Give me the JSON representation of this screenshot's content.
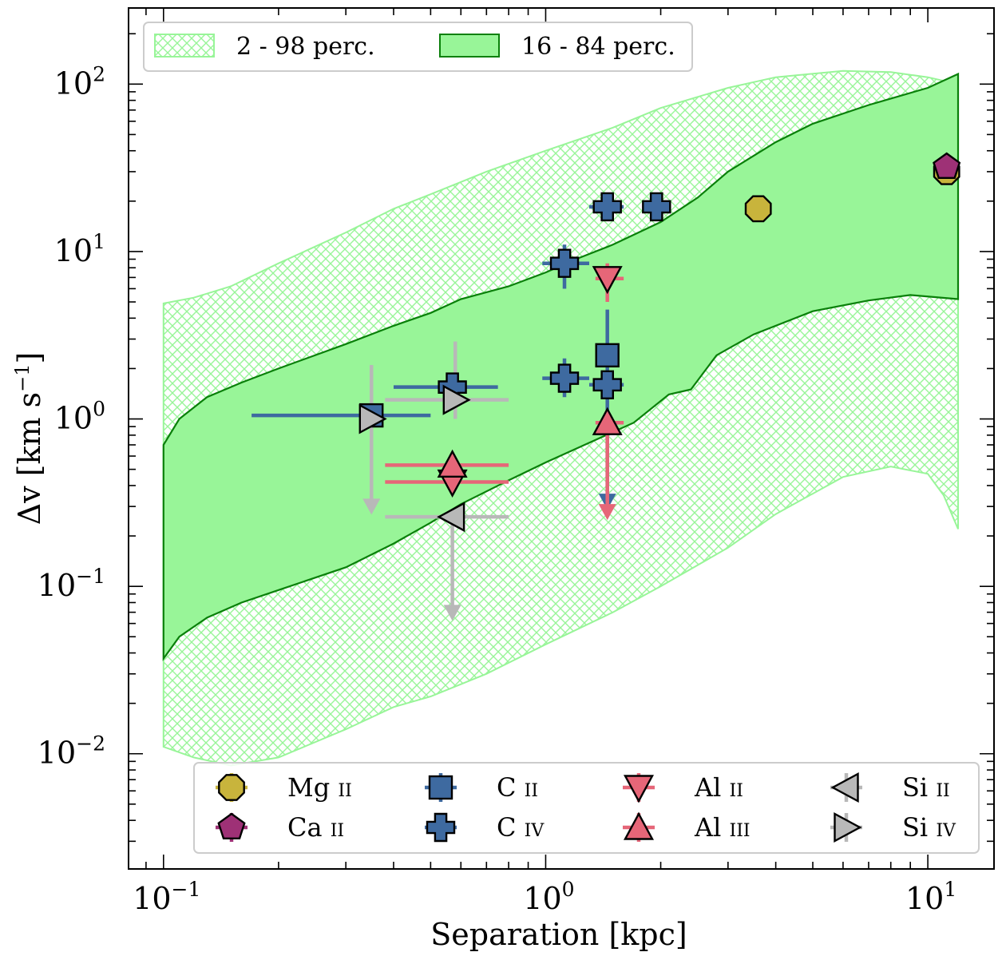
{
  "chart_data": {
    "type": "scatter",
    "xlabel": "Separation [kpc]",
    "ylabel_main": "Δv [km s",
    "ylabel_sup": "−1",
    "ylabel_end": "]",
    "x_scale": "log",
    "y_scale": "log",
    "xlim": [
      0.081,
      14.9
    ],
    "ylim": [
      0.00205,
      285
    ],
    "x_ticks": [
      {
        "value": 0.1,
        "base": "10",
        "exp": "−1"
      },
      {
        "value": 1,
        "base": "10",
        "exp": "0"
      },
      {
        "value": 10,
        "base": "10",
        "exp": "1"
      }
    ],
    "y_ticks": [
      {
        "value": 0.01,
        "base": "10",
        "exp": "−2"
      },
      {
        "value": 0.1,
        "base": "10",
        "exp": "−1"
      },
      {
        "value": 1,
        "base": "10",
        "exp": "0"
      },
      {
        "value": 10,
        "base": "10",
        "exp": "1"
      },
      {
        "value": 100,
        "base": "10",
        "exp": "2"
      }
    ],
    "band_legend": [
      {
        "label": "2 - 98 perc.",
        "style": "hatched"
      },
      {
        "label": "16 - 84 perc.",
        "style": "filled"
      }
    ],
    "bands": {
      "p2_98_upper": [
        [
          0.1,
          4.9
        ],
        [
          0.12,
          5.3
        ],
        [
          0.15,
          6.2
        ],
        [
          0.2,
          8.5
        ],
        [
          0.3,
          13
        ],
        [
          0.4,
          18
        ],
        [
          0.5,
          22
        ],
        [
          0.7,
          30
        ],
        [
          1.0,
          40
        ],
        [
          1.5,
          55
        ],
        [
          2.0,
          72
        ],
        [
          3.0,
          95
        ],
        [
          4.0,
          110
        ],
        [
          6.0,
          120
        ],
        [
          8.0,
          118
        ],
        [
          10,
          110
        ],
        [
          12,
          100
        ]
      ],
      "p2_98_lower": [
        [
          0.1,
          0.011
        ],
        [
          0.12,
          0.0095
        ],
        [
          0.15,
          0.0085
        ],
        [
          0.2,
          0.0095
        ],
        [
          0.3,
          0.014
        ],
        [
          0.4,
          0.019
        ],
        [
          0.5,
          0.022
        ],
        [
          0.7,
          0.03
        ],
        [
          1.0,
          0.045
        ],
        [
          1.5,
          0.07
        ],
        [
          2.0,
          0.1
        ],
        [
          3.0,
          0.17
        ],
        [
          4.0,
          0.27
        ],
        [
          6.0,
          0.45
        ],
        [
          8.0,
          0.52
        ],
        [
          10,
          0.47
        ],
        [
          11,
          0.35
        ],
        [
          12,
          0.22
        ]
      ],
      "p16_84_upper": [
        [
          0.1,
          0.7
        ],
        [
          0.11,
          1.0
        ],
        [
          0.13,
          1.35
        ],
        [
          0.16,
          1.65
        ],
        [
          0.2,
          2.0
        ],
        [
          0.3,
          2.8
        ],
        [
          0.4,
          3.6
        ],
        [
          0.5,
          4.3
        ],
        [
          0.6,
          5.2
        ],
        [
          0.8,
          6.2
        ],
        [
          1.0,
          7.5
        ],
        [
          1.2,
          9.0
        ],
        [
          1.5,
          11
        ],
        [
          2.0,
          15
        ],
        [
          2.5,
          21
        ],
        [
          3.0,
          30
        ],
        [
          4.0,
          45
        ],
        [
          5.0,
          58
        ],
        [
          7.0,
          75
        ],
        [
          10,
          95
        ],
        [
          12,
          115
        ]
      ],
      "p16_84_lower": [
        [
          0.1,
          0.037
        ],
        [
          0.11,
          0.05
        ],
        [
          0.13,
          0.065
        ],
        [
          0.16,
          0.08
        ],
        [
          0.2,
          0.095
        ],
        [
          0.3,
          0.13
        ],
        [
          0.4,
          0.18
        ],
        [
          0.5,
          0.24
        ],
        [
          0.6,
          0.31
        ],
        [
          0.8,
          0.43
        ],
        [
          1.0,
          0.55
        ],
        [
          1.3,
          0.72
        ],
        [
          1.7,
          0.95
        ],
        [
          2.1,
          1.4
        ],
        [
          2.4,
          1.5
        ],
        [
          2.8,
          2.4
        ],
        [
          3.5,
          3.2
        ],
        [
          5.0,
          4.4
        ],
        [
          7.0,
          5.1
        ],
        [
          9.0,
          5.5
        ],
        [
          12,
          5.2
        ]
      ]
    },
    "series": [
      {
        "name": "Mg",
        "ion": "ii",
        "color": "#c8b43c",
        "marker": "octagon",
        "points": [
          {
            "x": 3.6,
            "y": 18
          },
          {
            "x": 11.2,
            "y": 30
          }
        ]
      },
      {
        "name": "Ca",
        "ion": "ii",
        "color": "#9e3176",
        "marker": "pentagon",
        "points": [
          {
            "x": 11.2,
            "y": 32
          }
        ]
      },
      {
        "name": "C",
        "ion": "ii",
        "color": "#3e6aa0",
        "marker": "square",
        "points": [
          {
            "x": 0.35,
            "y": 1.05,
            "xerr": [
              0.17,
              0.5
            ]
          },
          {
            "x": 1.45,
            "y": 2.4,
            "yerr": [
              0.3,
              4.5
            ],
            "upper_limit": true
          }
        ]
      },
      {
        "name": "C",
        "ion": "iv",
        "color": "#3e6aa0",
        "marker": "plus",
        "points": [
          {
            "x": 0.57,
            "y": 1.55,
            "xerr": [
              0.4,
              0.75
            ]
          },
          {
            "x": 1.12,
            "y": 8.5,
            "xerr": [
              0.98,
              1.3
            ],
            "yerr": [
              6.0,
              11
            ]
          },
          {
            "x": 1.12,
            "y": 1.75,
            "xerr": [
              0.98,
              1.3
            ],
            "yerr": [
              1.35,
              2.3
            ]
          },
          {
            "x": 1.45,
            "y": 18.5,
            "xerr": [
              1.3,
              1.6
            ]
          },
          {
            "x": 1.45,
            "y": 1.6,
            "xerr": [
              1.3,
              1.6
            ]
          },
          {
            "x": 1.95,
            "y": 18.5
          }
        ]
      },
      {
        "name": "Al",
        "ion": "ii",
        "color": "#e66678",
        "marker": "triangle-down",
        "points": [
          {
            "x": 0.57,
            "y": 0.42,
            "xerr": [
              0.38,
              0.8
            ]
          },
          {
            "x": 1.45,
            "y": 6.9,
            "xerr": [
              1.35,
              1.6
            ],
            "yerr": [
              5.0,
              8.5
            ]
          }
        ]
      },
      {
        "name": "Al",
        "ion": "iii",
        "color": "#e66678",
        "marker": "triangle-up",
        "points": [
          {
            "x": 0.57,
            "y": 0.53,
            "xerr": [
              0.38,
              0.8
            ]
          },
          {
            "x": 1.45,
            "y": 0.95,
            "xerr": [
              1.35,
              1.6
            ],
            "yerr": [
              0.26,
              1.0
            ],
            "upper_limit": true
          }
        ]
      },
      {
        "name": "Si",
        "ion": "ii",
        "color": "#b8b8b8",
        "marker": "triangle-left",
        "points": [
          {
            "x": 0.57,
            "y": 0.26,
            "xerr": [
              0.38,
              0.8
            ],
            "yerr": [
              0.065,
              0.26
            ],
            "upper_limit": true
          }
        ]
      },
      {
        "name": "Si",
        "ion": "iv",
        "color": "#b8b8b8",
        "marker": "triangle-right",
        "points": [
          {
            "x": 0.35,
            "y": 1.0,
            "yerr": [
              0.28,
              2.1
            ],
            "upper_limit": true
          },
          {
            "x": 0.58,
            "y": 1.3,
            "xerr": [
              0.38,
              0.8
            ],
            "yerr": [
              1.0,
              2.9
            ]
          }
        ]
      }
    ]
  }
}
